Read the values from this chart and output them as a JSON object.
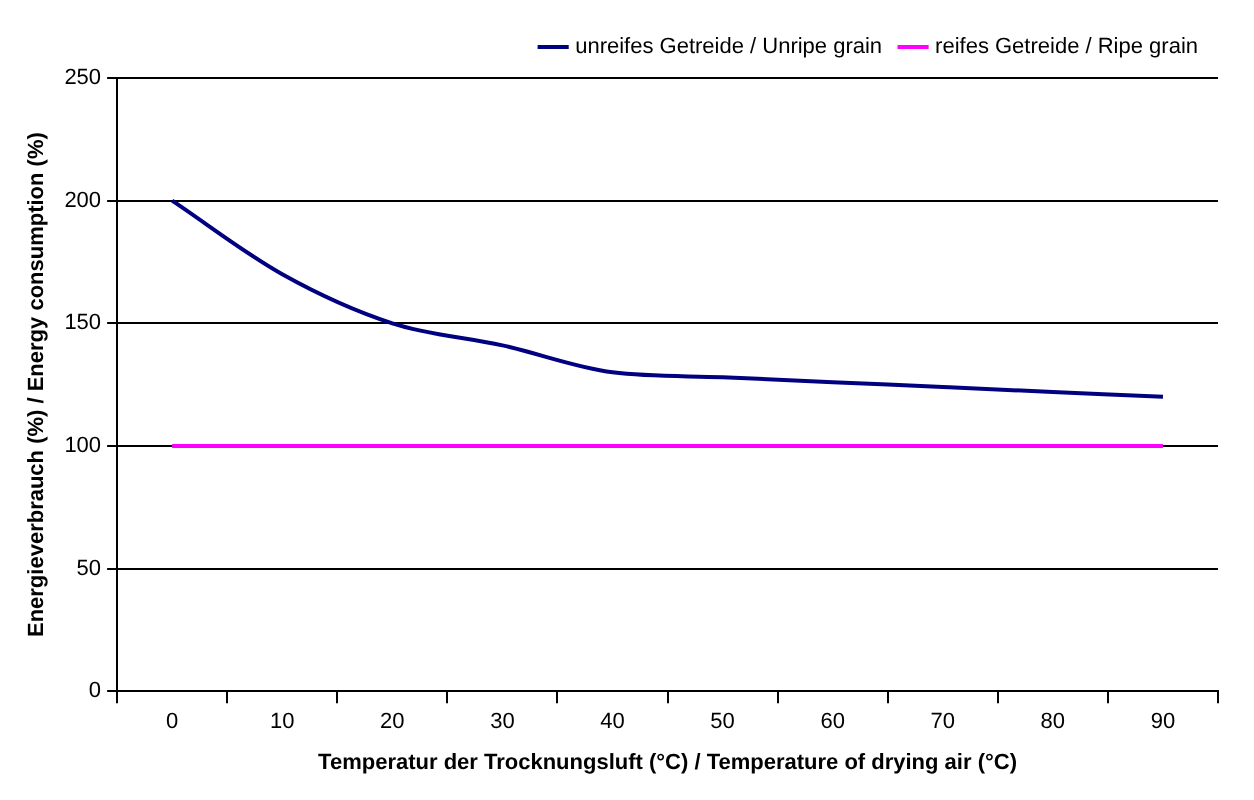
{
  "chart_data": {
    "type": "line",
    "xlabel": "Temperatur der Trocknungsluft (°C) / Temperature of drying air (°C)",
    "ylabel": "Energieverbrauch (%) / Energy consumption (%)",
    "categories": [
      "0",
      "10",
      "20",
      "30",
      "40",
      "50",
      "60",
      "70",
      "80",
      "90"
    ],
    "series": [
      {
        "name": "unreifes Getreide / Unripe grain",
        "color": "#000080",
        "values": [
          200,
          170,
          150,
          141,
          130,
          128,
          126,
          124,
          122,
          120
        ]
      },
      {
        "name": "reifes Getreide / Ripe grain",
        "color": "#ff00ff",
        "values": [
          100,
          100,
          100,
          100,
          100,
          100,
          100,
          100,
          100,
          100
        ]
      }
    ],
    "ylim": [
      0,
      250
    ],
    "yticks": [
      0,
      50,
      100,
      150,
      200,
      250
    ],
    "grid": "y",
    "legend": "top right",
    "marker": "none",
    "line_style": "solid"
  }
}
